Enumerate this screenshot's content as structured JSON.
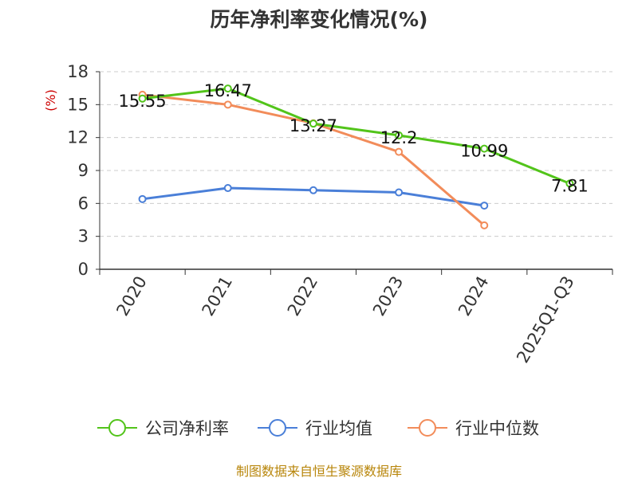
{
  "chart_data": {
    "type": "line",
    "title": "历年净利率变化情况(%)",
    "ylabel": "(%)",
    "xlabel": "",
    "categories": [
      "2020",
      "2021",
      "2022",
      "2023",
      "2024",
      "2025Q1-Q3"
    ],
    "y_ticks": [
      "0",
      "3",
      "6",
      "9",
      "12",
      "15",
      "18"
    ],
    "ylim": [
      0,
      18
    ],
    "grid": true,
    "legend_position": "bottom",
    "series": [
      {
        "name": "公司净利率",
        "color": "#52c41a",
        "values": [
          15.55,
          16.47,
          13.27,
          12.2,
          10.99,
          7.81
        ],
        "labels": [
          "15.55",
          "16.47",
          "13.27",
          "12.2",
          "10.99",
          "7.81"
        ]
      },
      {
        "name": "行业均值",
        "color": "#4a7fd8",
        "values": [
          6.4,
          7.4,
          7.2,
          7.0,
          5.8,
          null
        ],
        "labels": []
      },
      {
        "name": "行业中位数",
        "color": "#f28c5a",
        "values": [
          15.9,
          15.0,
          13.3,
          10.7,
          4.0,
          null
        ],
        "labels": []
      }
    ]
  },
  "source": "制图数据来自恒生聚源数据库"
}
